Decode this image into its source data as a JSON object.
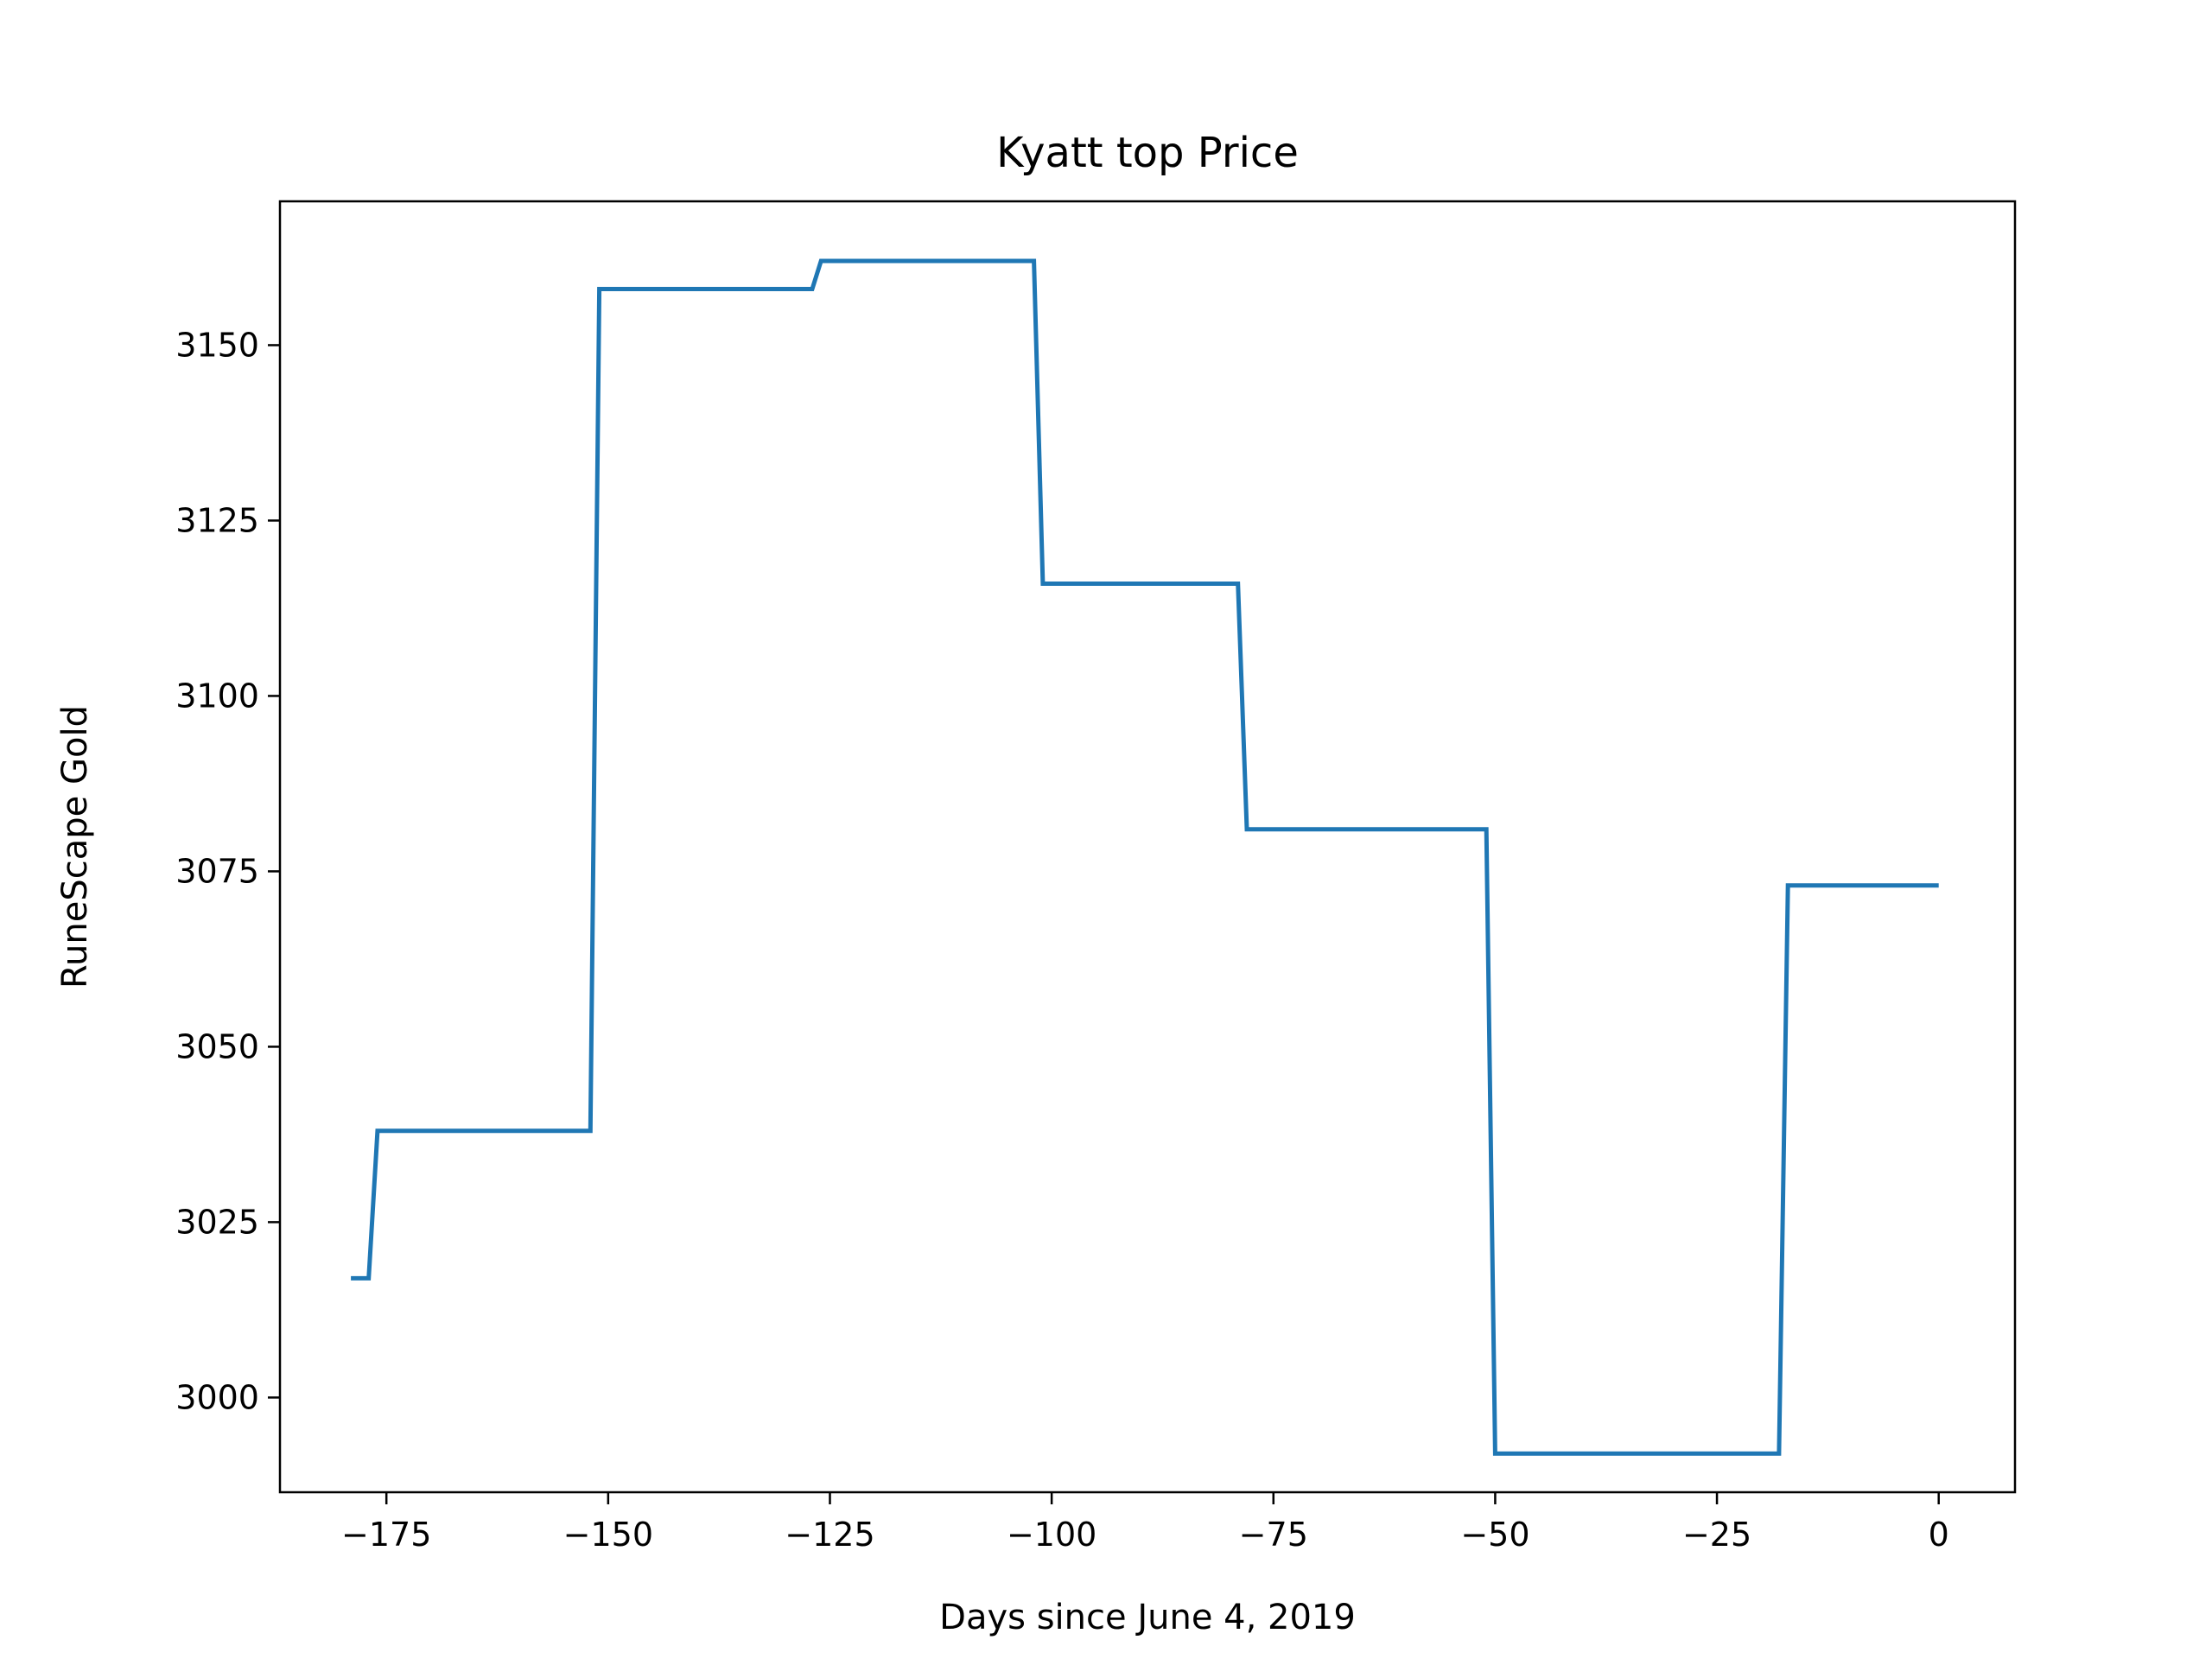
{
  "chart_data": {
    "type": "line",
    "title": "Kyatt top Price",
    "xlabel": "Days since June 4, 2019",
    "ylabel": "RuneScape Gold",
    "xlim": [
      -187,
      8.6
    ],
    "ylim": [
      2986.5,
      3170.5
    ],
    "x_ticks": [
      -175,
      -150,
      -125,
      -100,
      -75,
      -50,
      -25,
      0
    ],
    "x_tick_labels": [
      "−175",
      "−150",
      "−125",
      "−100",
      "−75",
      "−50",
      "−25",
      "0"
    ],
    "y_ticks": [
      3000,
      3025,
      3050,
      3075,
      3100,
      3125,
      3150
    ],
    "y_tick_labels": [
      "3000",
      "3025",
      "3050",
      "3075",
      "3100",
      "3125",
      "3150"
    ],
    "grid": false,
    "legend": "none",
    "series": [
      {
        "color": "#1f77b4",
        "x": [
          -179,
          -177,
          -176,
          -152,
          -151,
          -127,
          -126,
          -102,
          -101,
          -79,
          -78,
          -51,
          -50,
          -18,
          -17,
          0
        ],
        "y": [
          3017,
          3017,
          3038,
          3038,
          3158,
          3158,
          3162,
          3162,
          3116,
          3116,
          3081,
          3081,
          2992,
          2992,
          3073,
          3073
        ]
      }
    ]
  }
}
